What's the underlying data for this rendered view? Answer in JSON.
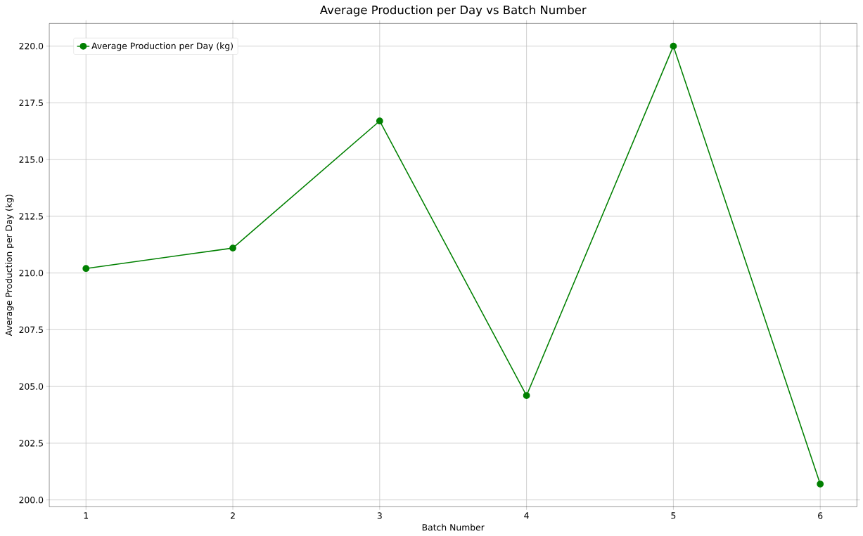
{
  "chart_data": {
    "type": "line",
    "title": "Average Production per Day vs Batch Number",
    "xlabel": "Batch Number",
    "ylabel": "Average Production per Day (kg)",
    "x": [
      1,
      2,
      3,
      4,
      5,
      6
    ],
    "series": [
      {
        "name": "Average Production per Day (kg)",
        "color": "#008000",
        "values": [
          210.2,
          211.1,
          216.7,
          204.6,
          220.0,
          200.7
        ]
      }
    ],
    "xlim": [
      0.75,
      6.25
    ],
    "xticks": [
      1,
      2,
      3,
      4,
      5,
      6
    ],
    "ylim": [
      199.7,
      221.0
    ],
    "yticks": [
      {
        "value": 200,
        "label": "200.0"
      },
      {
        "value": 202.5,
        "label": "202.5"
      },
      {
        "value": 205,
        "label": "205.0"
      },
      {
        "value": 207.5,
        "label": "207.5"
      },
      {
        "value": 210,
        "label": "210.0"
      },
      {
        "value": 212.5,
        "label": "212.5"
      },
      {
        "value": 215,
        "label": "215.0"
      },
      {
        "value": 217.5,
        "label": "217.5"
      },
      {
        "value": 220,
        "label": "220.0"
      }
    ],
    "grid": true,
    "legend": "top left",
    "marker": "circle",
    "line_style": "solid"
  }
}
